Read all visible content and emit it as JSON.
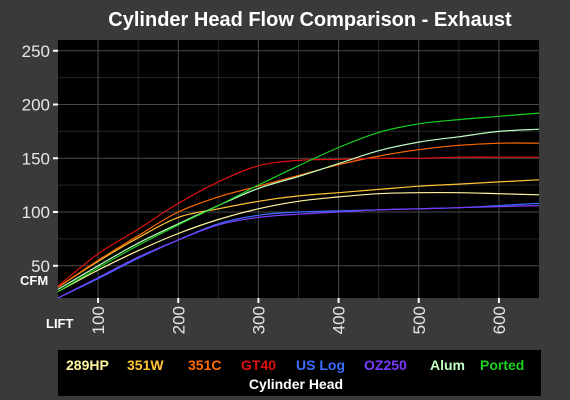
{
  "chart_data": {
    "type": "line",
    "title": "Cylinder Head Flow Comparison - Exhaust",
    "xlabel": "LIFT",
    "ylabel": "CFM",
    "legend_title": "Cylinder Head",
    "legend_position": "bottom",
    "grid": true,
    "xlim": [
      50,
      650
    ],
    "ylim": [
      20,
      260
    ],
    "xticks": [
      100,
      200,
      300,
      400,
      500,
      600
    ],
    "yticks": [
      50,
      100,
      150,
      200,
      250
    ],
    "x": [
      50,
      100,
      150,
      200,
      250,
      300,
      350,
      400,
      450,
      500,
      550,
      600,
      650
    ],
    "series": [
      {
        "name": "289HP",
        "color": "#fff5a0",
        "values": [
          26,
          46,
          64,
          80,
          93,
          103,
          110,
          114,
          117,
          118,
          118,
          117,
          116
        ]
      },
      {
        "name": "351W",
        "color": "#ffc433",
        "values": [
          30,
          54,
          76,
          95,
          103,
          110,
          115,
          118,
          121,
          124,
          126,
          128,
          130
        ]
      },
      {
        "name": "351C",
        "color": "#ff6a00",
        "values": [
          30,
          55,
          78,
          100,
          114,
          124,
          134,
          144,
          152,
          158,
          162,
          164,
          164
        ]
      },
      {
        "name": "GT40",
        "color": "#e01010",
        "values": [
          31,
          61,
          84,
          108,
          128,
          143,
          148,
          149,
          150,
          150,
          151,
          151,
          151
        ]
      },
      {
        "name": "US Log",
        "color": "#3a6dff",
        "values": [
          20,
          38,
          57,
          74,
          89,
          97,
          100,
          101,
          102,
          103,
          104,
          106,
          108
        ]
      },
      {
        "name": "OZ250",
        "color": "#7a3cff",
        "values": [
          20,
          39,
          58,
          74,
          88,
          95,
          98,
          100,
          102,
          103,
          104,
          105,
          106
        ]
      },
      {
        "name": "Alum",
        "color": "#bfffc0",
        "values": [
          28,
          50,
          71,
          89,
          106,
          122,
          133,
          145,
          157,
          165,
          170,
          175,
          177
        ]
      },
      {
        "name": "Ported",
        "color": "#19d11e",
        "values": [
          26,
          48,
          69,
          88,
          106,
          125,
          143,
          160,
          174,
          182,
          186,
          189,
          192
        ]
      }
    ]
  }
}
